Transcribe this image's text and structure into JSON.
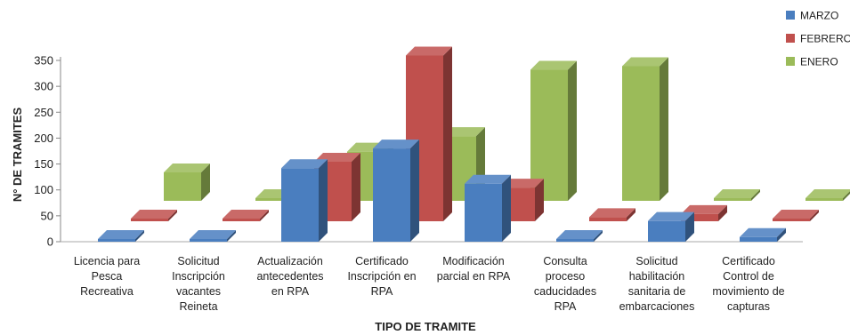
{
  "chart_data": {
    "type": "bar",
    "subtype": "3d-clustered-depth",
    "title": "",
    "xlabel": "TIPO DE TRAMITE",
    "ylabel": "N° DE TRAMITES",
    "ylim": [
      0,
      350
    ],
    "yticks": [
      0,
      50,
      100,
      150,
      200,
      250,
      300,
      350
    ],
    "grid": false,
    "legend_position": "top-right",
    "categories": [
      [
        "Licencia para",
        "Pesca",
        "Recreativa"
      ],
      [
        "Solicitud",
        "Inscripción",
        "vacantes",
        "Reineta"
      ],
      [
        "Actualización",
        "antecedentes",
        "en RPA"
      ],
      [
        "Certificado",
        "Inscripción en",
        "RPA"
      ],
      [
        "Modificación",
        "parcial en RPA"
      ],
      [
        "Consulta",
        "proceso",
        "caducidades",
        "RPA"
      ],
      [
        "Solicitud",
        "habilitación",
        "sanitaria de",
        "embarcaciones"
      ],
      [
        "Certificado",
        "Control de",
        "movimiento de",
        "capturas"
      ]
    ],
    "series": [
      {
        "name": "MARZO",
        "color": "#4a7ebf",
        "values": [
          0,
          0,
          142,
          180,
          112,
          0,
          40,
          9
        ]
      },
      {
        "name": "FEBRERO",
        "color": "#c0504d",
        "values": [
          0,
          0,
          115,
          320,
          65,
          8,
          14,
          0
        ]
      },
      {
        "name": "ENERO",
        "color": "#9bbb59",
        "values": [
          55,
          0,
          95,
          125,
          253,
          260,
          0,
          0
        ]
      }
    ]
  }
}
